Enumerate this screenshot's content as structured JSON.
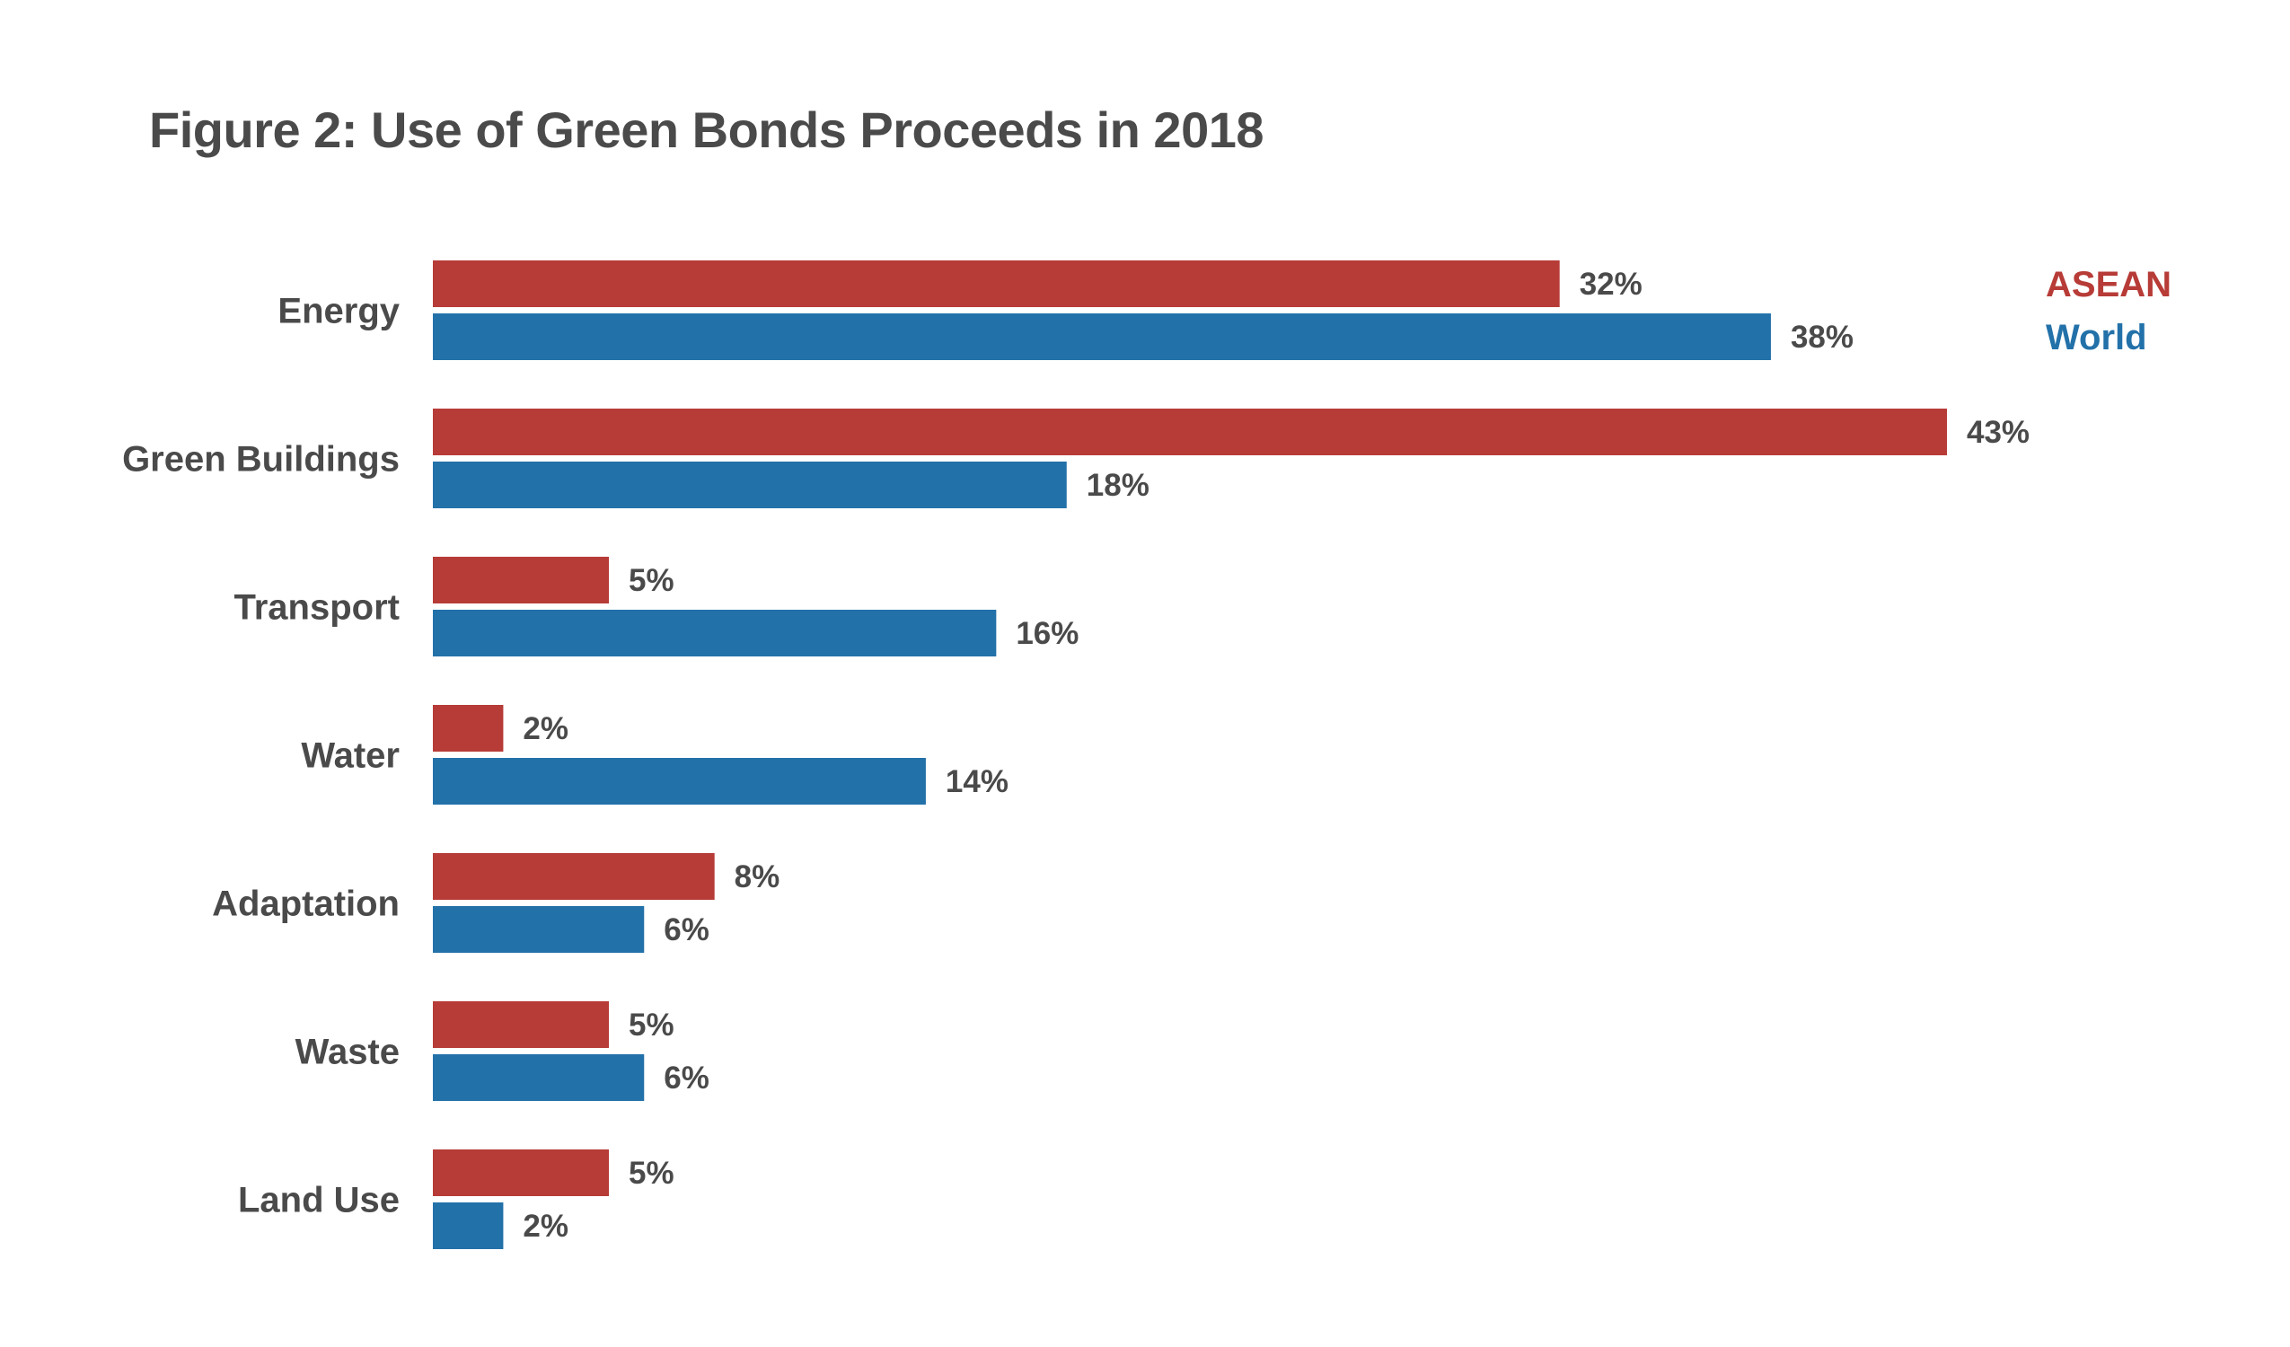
{
  "title": "Figure 2: Use of Green Bonds Proceeds in 2018",
  "chart_data": {
    "type": "bar",
    "orientation": "horizontal",
    "title": "Figure 2: Use of Green Bonds Proceeds in 2018",
    "categories": [
      "Energy",
      "Green Buildings",
      "Transport",
      "Water",
      "Adaptation",
      "Waste",
      "Land Use"
    ],
    "series": [
      {
        "name": "ASEAN",
        "color": "#b73b37",
        "values": [
          32,
          43,
          5,
          2,
          8,
          5,
          5
        ],
        "labels": [
          "32%",
          "43%",
          "5%",
          "2%",
          "8%",
          "5%",
          "5%"
        ]
      },
      {
        "name": "World",
        "color": "#2371a9",
        "values": [
          38,
          18,
          16,
          14,
          6,
          6,
          2
        ],
        "labels": [
          "38%",
          "18%",
          "16%",
          "14%",
          "6%",
          "6%",
          "2%"
        ]
      }
    ],
    "xlim": [
      0,
      43
    ],
    "grid": false,
    "legend_position": "top-right",
    "value_unit": "%"
  }
}
